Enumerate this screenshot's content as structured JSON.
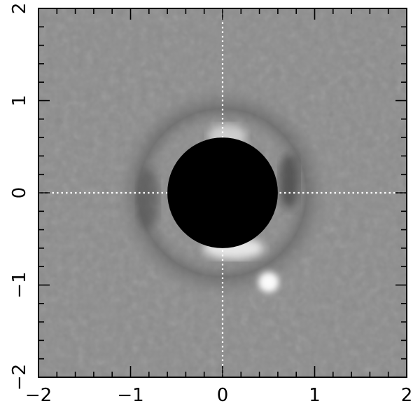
{
  "plot": {
    "xlim": [
      -2,
      2
    ],
    "ylim": [
      -2,
      2
    ],
    "x_ticks": [
      {
        "value": -2,
        "label": "−2"
      },
      {
        "value": -1,
        "label": "−1"
      },
      {
        "value": 0,
        "label": "0"
      },
      {
        "value": 1,
        "label": "1"
      },
      {
        "value": 2,
        "label": "2"
      }
    ],
    "y_ticks": [
      {
        "value": -2,
        "label": "−2"
      },
      {
        "value": -1,
        "label": "−1"
      },
      {
        "value": 0,
        "label": "0"
      },
      {
        "value": 1,
        "label": "1"
      },
      {
        "value": 2,
        "label": "2"
      }
    ],
    "minor_tick_step": 0.2,
    "crosshair": {
      "x": 0,
      "y": 0,
      "style": "dotted",
      "color": "#ffffff"
    },
    "occulting_mask": {
      "center": [
        0,
        0
      ],
      "radius": 0.6,
      "color": "#000000"
    },
    "companion_source": {
      "x": 0.5,
      "y": -0.97,
      "radius": 0.11,
      "color": "#ffffff"
    },
    "background_color": "#8c8c8c"
  }
}
